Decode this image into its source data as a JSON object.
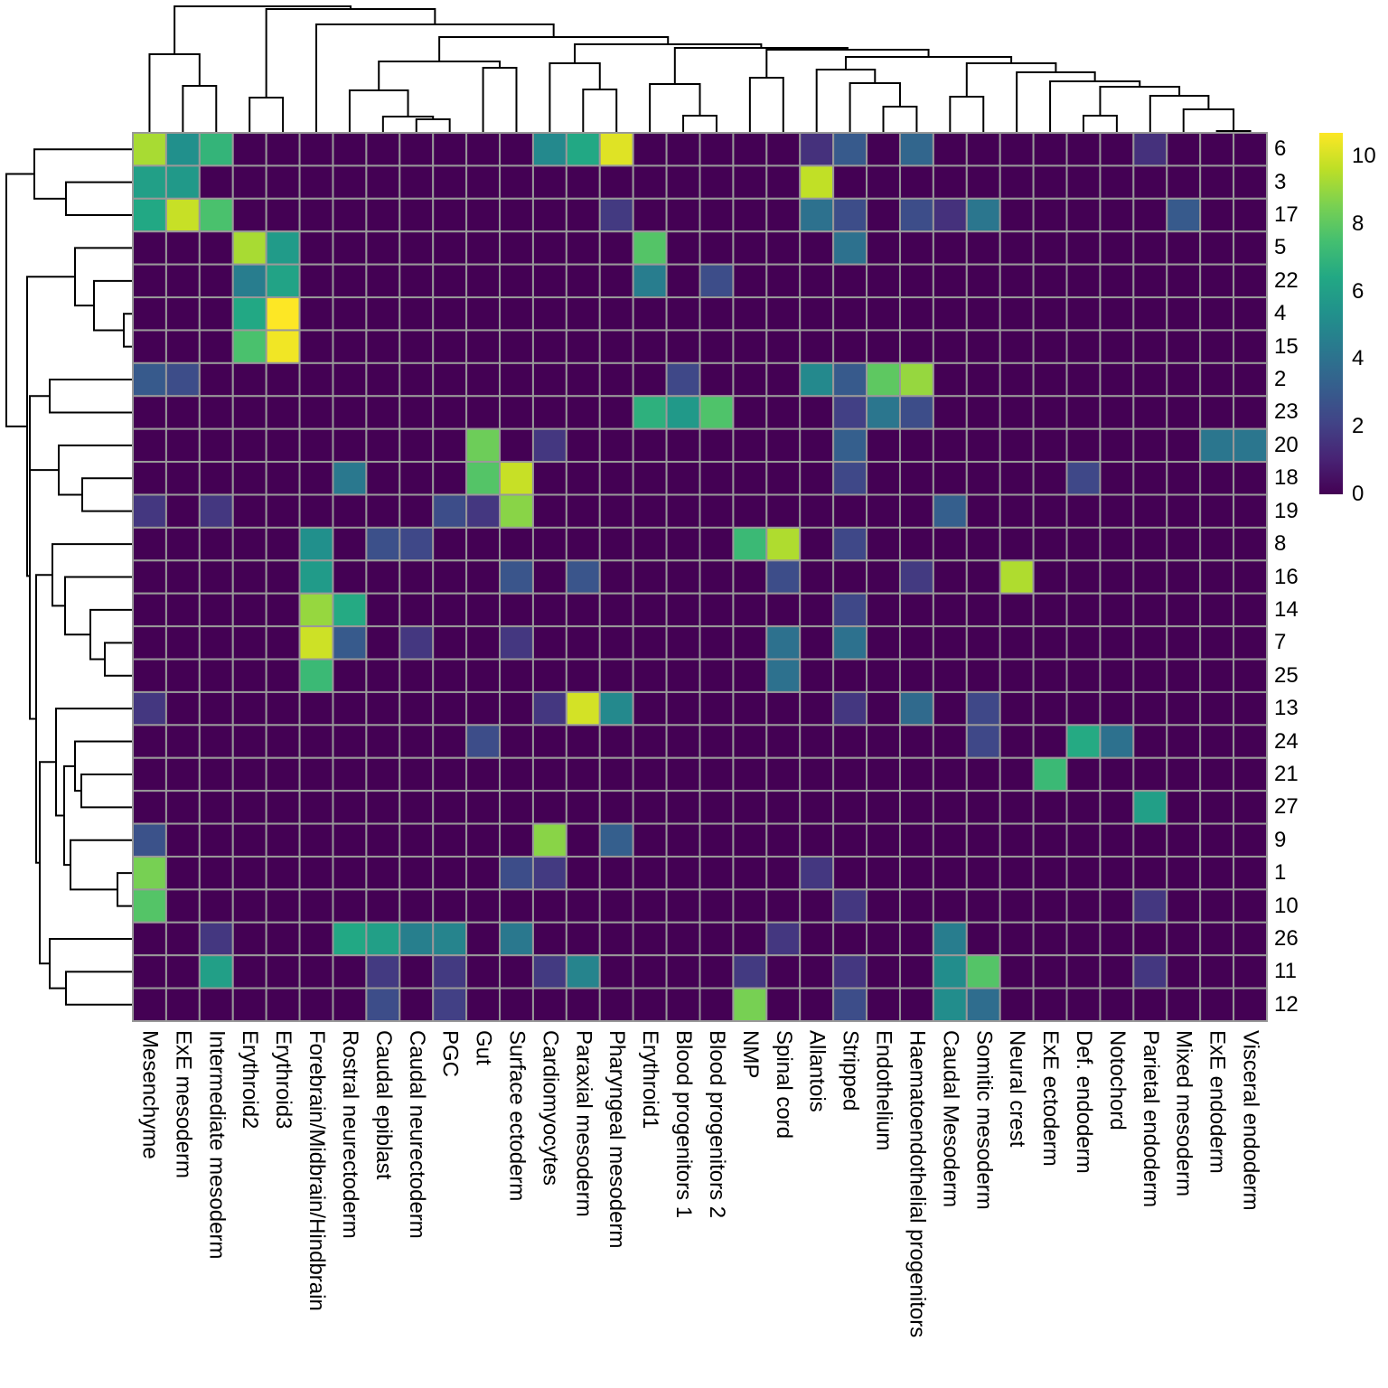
{
  "chart_data": {
    "type": "heatmap",
    "colormap": "viridis",
    "color_range": [
      0,
      10.7
    ],
    "legend_ticks": [
      "0",
      "2",
      "4",
      "6",
      "8",
      "10"
    ],
    "legend_placement": "right",
    "grid_color": "#999999",
    "row_labels": [
      "6",
      "3",
      "17",
      "5",
      "22",
      "4",
      "15",
      "2",
      "23",
      "20",
      "18",
      "19",
      "8",
      "16",
      "14",
      "7",
      "25",
      "13",
      "24",
      "21",
      "27",
      "9",
      "1",
      "10",
      "26",
      "11",
      "12"
    ],
    "col_labels": [
      "Mesenchyme",
      "ExE mesoderm",
      "Intermediate mesoderm",
      "Erythroid2",
      "Erythroid3",
      "Forebrain/Midbrain/Hindbrain",
      "Rostral neurectoderm",
      "Caudal epiblast",
      "Caudal neurectoderm",
      "PGC",
      "Gut",
      "Surface ectoderm",
      "Cardiomyocytes",
      "Paraxial mesoderm",
      "Pharyngeal mesoderm",
      "Erythroid1",
      "Blood progenitors 1",
      "Blood progenitors 2",
      "NMP",
      "Spinal cord",
      "Allantois",
      "Stripped",
      "Endothelium",
      "Haematoendothelial progenitors",
      "Caudal Mesoderm",
      "Somitic mesoderm",
      "Neural crest",
      "ExE ectoderm",
      "Def. endoderm",
      "Notochord",
      "Parietal endoderm",
      "Mixed mesoderm",
      "ExE endoderm",
      "Visceral endoderm"
    ],
    "values": [
      [
        9.3,
        5.3,
        7.0,
        0,
        0,
        0,
        0,
        0,
        0,
        0,
        0,
        0,
        5.0,
        6.4,
        10.2,
        0,
        0,
        0,
        0,
        0,
        1.5,
        3.0,
        0,
        3.5,
        0,
        0,
        0,
        0,
        0,
        0,
        1.5,
        0,
        0,
        0
      ],
      [
        6.0,
        5.7,
        0,
        0,
        0,
        0,
        0,
        0,
        0,
        0,
        0,
        0,
        0,
        0,
        0,
        0,
        0,
        0,
        0,
        0,
        9.7,
        0,
        0,
        0,
        0,
        0,
        0,
        0,
        0,
        0,
        0,
        0,
        0,
        0
      ],
      [
        6.4,
        9.8,
        7.6,
        0,
        0,
        0,
        0,
        0,
        0,
        0,
        0,
        0,
        0,
        0,
        1.8,
        0,
        0,
        0,
        0,
        0,
        4.0,
        2.5,
        0,
        2.5,
        1.5,
        4.2,
        0,
        0,
        0,
        0,
        0,
        3.0,
        0,
        0
      ],
      [
        0,
        0,
        0,
        9.3,
        5.8,
        0,
        0,
        0,
        0,
        0,
        0,
        0,
        0,
        0,
        0,
        7.8,
        0,
        0,
        0,
        0,
        0,
        4.0,
        0,
        0,
        0,
        0,
        0,
        0,
        0,
        0,
        0,
        0,
        0,
        0
      ],
      [
        0,
        0,
        0,
        4.5,
        6.2,
        0,
        0,
        0,
        0,
        0,
        0,
        0,
        0,
        0,
        0,
        4.5,
        0,
        2.5,
        0,
        0,
        0,
        0,
        0,
        0,
        0,
        0,
        0,
        0,
        0,
        0,
        0,
        0,
        0,
        0
      ],
      [
        0,
        0,
        0,
        6.4,
        10.7,
        0,
        0,
        0,
        0,
        0,
        0,
        0,
        0,
        0,
        0,
        0,
        0,
        0,
        0,
        0,
        0,
        0,
        0,
        0,
        0,
        0,
        0,
        0,
        0,
        0,
        0,
        0,
        0,
        0
      ],
      [
        0,
        0,
        0,
        7.6,
        10.5,
        0,
        0,
        0,
        0,
        0,
        0,
        0,
        0,
        0,
        0,
        0,
        0,
        0,
        0,
        0,
        0,
        0,
        0,
        0,
        0,
        0,
        0,
        0,
        0,
        0,
        0,
        0,
        0,
        0
      ],
      [
        3.0,
        2.5,
        0,
        0,
        0,
        0,
        0,
        0,
        0,
        0,
        0,
        0,
        0,
        0,
        0,
        0,
        2.3,
        0,
        0,
        0,
        5.0,
        3.0,
        8.0,
        9.0,
        0,
        0,
        0,
        0,
        0,
        0,
        0,
        0,
        0,
        0
      ],
      [
        0,
        0,
        0,
        0,
        0,
        0,
        0,
        0,
        0,
        0,
        0,
        0,
        0,
        0,
        0,
        6.8,
        5.7,
        7.7,
        0,
        0,
        0,
        2.0,
        4.2,
        2.5,
        0,
        0,
        0,
        0,
        0,
        0,
        0,
        0,
        0,
        0
      ],
      [
        0,
        0,
        0,
        0,
        0,
        0,
        0,
        0,
        0,
        0,
        8.3,
        0,
        1.7,
        0,
        0,
        0,
        0,
        0,
        0,
        0,
        0,
        3.2,
        0,
        0,
        0,
        0,
        0,
        0,
        0,
        0,
        0,
        0,
        4.2,
        4.2
      ],
      [
        0,
        0,
        0,
        0,
        0,
        0,
        4.3,
        0,
        0,
        0,
        7.8,
        9.8,
        0,
        0,
        0,
        0,
        0,
        0,
        0,
        0,
        0,
        2.3,
        0,
        0,
        0,
        0,
        0,
        0,
        2.3,
        0,
        0,
        0,
        0,
        0
      ],
      [
        1.7,
        0,
        1.7,
        0,
        0,
        0,
        0,
        0,
        0,
        2.5,
        1.7,
        8.8,
        0,
        0,
        0,
        0,
        0,
        0,
        0,
        0,
        0,
        0,
        0,
        0,
        3.2,
        0,
        0,
        0,
        0,
        0,
        0,
        0,
        0,
        0
      ],
      [
        0,
        0,
        0,
        0,
        0,
        5.3,
        0,
        2.6,
        2.3,
        0,
        0,
        0,
        0,
        0,
        0,
        0,
        0,
        0,
        7.2,
        9.4,
        0,
        2.3,
        0,
        0,
        0,
        0,
        0,
        0,
        0,
        0,
        0,
        0,
        0,
        0
      ],
      [
        0,
        0,
        0,
        0,
        0,
        5.8,
        0,
        0,
        0,
        0,
        0,
        2.8,
        0,
        2.8,
        0,
        0,
        0,
        0,
        0,
        2.5,
        0,
        0,
        0,
        1.8,
        0,
        0,
        9.4,
        0,
        0,
        0,
        0,
        0,
        0,
        0
      ],
      [
        0,
        0,
        0,
        0,
        0,
        9.0,
        6.5,
        0,
        0,
        0,
        0,
        0,
        0,
        0,
        0,
        0,
        0,
        0,
        0,
        0,
        0,
        2.3,
        0,
        0,
        0,
        0,
        0,
        0,
        0,
        0,
        0,
        0,
        0,
        0
      ],
      [
        0,
        0,
        0,
        0,
        0,
        9.9,
        3.0,
        0,
        1.7,
        0,
        0,
        1.7,
        0,
        0,
        0,
        0,
        0,
        0,
        0,
        4.0,
        0,
        4.0,
        0,
        0,
        0,
        0,
        0,
        0,
        0,
        0,
        0,
        0,
        0,
        0
      ],
      [
        0,
        0,
        0,
        0,
        0,
        7.2,
        0,
        0,
        0,
        0,
        0,
        0,
        0,
        0,
        0,
        0,
        0,
        0,
        0,
        4.0,
        0,
        0,
        0,
        0,
        0,
        0,
        0,
        0,
        0,
        0,
        0,
        0,
        0,
        0
      ],
      [
        1.7,
        0,
        0,
        0,
        0,
        0,
        0,
        0,
        0,
        0,
        0,
        0,
        1.7,
        10.0,
        5.0,
        0,
        0,
        0,
        0,
        0,
        0,
        1.7,
        0,
        3.7,
        0,
        2.3,
        0,
        0,
        0,
        0,
        0,
        0,
        0,
        0
      ],
      [
        0,
        0,
        0,
        0,
        0,
        0,
        0,
        0,
        0,
        0,
        2.5,
        0,
        0,
        0,
        0,
        0,
        0,
        0,
        0,
        0,
        0,
        0,
        0,
        0,
        0,
        2.3,
        0,
        0,
        6.5,
        4.0,
        0,
        0,
        0,
        0
      ],
      [
        0,
        0,
        0,
        0,
        0,
        0,
        0,
        0,
        0,
        0,
        0,
        0,
        0,
        0,
        0,
        0,
        0,
        0,
        0,
        0,
        0,
        0,
        0,
        0,
        0,
        0,
        0,
        7.2,
        0,
        0,
        0,
        0,
        0,
        0
      ],
      [
        0,
        0,
        0,
        0,
        0,
        0,
        0,
        0,
        0,
        0,
        0,
        0,
        0,
        0,
        0,
        0,
        0,
        0,
        0,
        0,
        0,
        0,
        0,
        0,
        0,
        0,
        0,
        0,
        0,
        0,
        6.0,
        0,
        0,
        0
      ],
      [
        2.7,
        0,
        0,
        0,
        0,
        0,
        0,
        0,
        0,
        0,
        0,
        0,
        8.8,
        0,
        3.2,
        0,
        0,
        0,
        0,
        0,
        0,
        0,
        0,
        0,
        0,
        0,
        0,
        0,
        0,
        0,
        0,
        0,
        0,
        0
      ],
      [
        8.5,
        0,
        0,
        0,
        0,
        0,
        0,
        0,
        0,
        0,
        0,
        2.5,
        1.8,
        0,
        0,
        0,
        0,
        0,
        0,
        0,
        1.7,
        0,
        0,
        0,
        0,
        0,
        0,
        0,
        0,
        0,
        0,
        0,
        0,
        0
      ],
      [
        7.8,
        0,
        0,
        0,
        0,
        0,
        0,
        0,
        0,
        0,
        0,
        0,
        0,
        0,
        0,
        0,
        0,
        0,
        0,
        0,
        0,
        1.7,
        0,
        0,
        0,
        0,
        0,
        0,
        0,
        0,
        1.7,
        0,
        0,
        0
      ],
      [
        0,
        0,
        1.7,
        0,
        0,
        0,
        6.4,
        6.0,
        4.6,
        4.8,
        0,
        4.3,
        0,
        0,
        0,
        0,
        0,
        0,
        0,
        1.7,
        0,
        0,
        0,
        0,
        4.5,
        0,
        0,
        0,
        0,
        0,
        0,
        0,
        0,
        0
      ],
      [
        0,
        0,
        6.0,
        0,
        0,
        0,
        0,
        1.8,
        0,
        1.8,
        0,
        0,
        1.8,
        4.8,
        0,
        0,
        0,
        0,
        1.8,
        0,
        0,
        1.7,
        0,
        0,
        5.2,
        7.8,
        0,
        0,
        0,
        0,
        1.7,
        0,
        0,
        0
      ],
      [
        0,
        0,
        0,
        0,
        0,
        0,
        0,
        2.5,
        0,
        2.0,
        0,
        0,
        0,
        0,
        0,
        0,
        0,
        0,
        8.5,
        0,
        0,
        2.5,
        0,
        0,
        5.2,
        3.8,
        0,
        0,
        0,
        0,
        0,
        0,
        0,
        0
      ]
    ]
  }
}
